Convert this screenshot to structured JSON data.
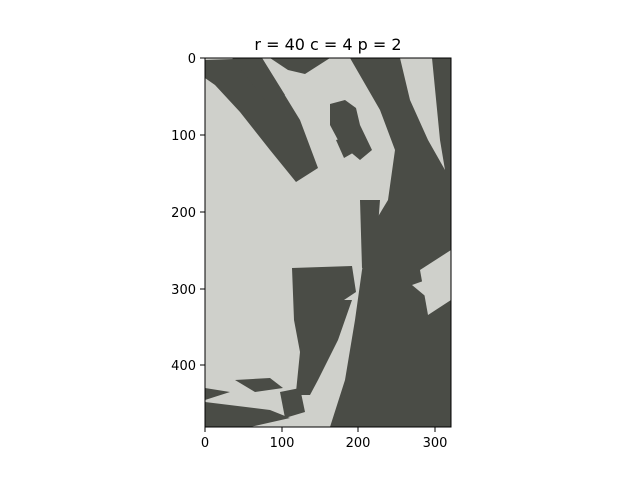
{
  "figure": {
    "title": "r = 40   c = 4   p = 2"
  },
  "axes": {
    "x_ticks": [
      "0",
      "100",
      "200",
      "300"
    ],
    "y_ticks": [
      "0",
      "100",
      "200",
      "300",
      "400"
    ]
  },
  "image": {
    "description_icon": "posterized-photo-woman-leaning-on-tree",
    "colors": {
      "light": "#cfd0cb",
      "dark": "#4a4c46"
    }
  }
}
